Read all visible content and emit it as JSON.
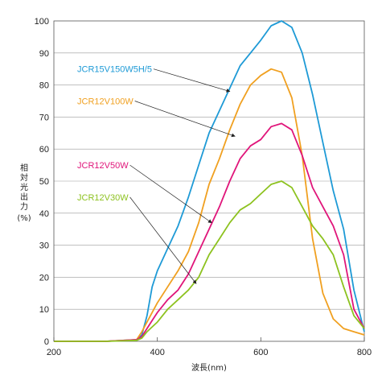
{
  "chart_data": {
    "type": "line",
    "xlabel": "波長(nm)",
    "ylabel_chars": [
      "相",
      "対",
      "光",
      "出",
      "力"
    ],
    "ylabel_unit": "(%)",
    "xlim": [
      200,
      800
    ],
    "ylim": [
      0,
      100
    ],
    "x_ticks": [
      200,
      400,
      600,
      800
    ],
    "y_ticks": [
      0,
      10,
      20,
      30,
      40,
      50,
      60,
      70,
      80,
      90,
      100
    ],
    "grid": "horizontal",
    "series": [
      {
        "name": "JCR15V150W5H/5",
        "color": "#1e9ad6",
        "label_pos": [
          100,
          85
        ],
        "arrow_to": [
          540,
          78
        ],
        "x": [
          200,
          300,
          360,
          370,
          380,
          390,
          400,
          420,
          440,
          460,
          480,
          500,
          520,
          540,
          560,
          580,
          600,
          620,
          640,
          660,
          680,
          700,
          720,
          740,
          760,
          780,
          800
        ],
        "y": [
          0,
          0,
          0.5,
          2,
          8,
          17,
          22,
          29,
          36,
          45,
          55,
          65,
          72,
          79,
          86,
          90,
          94,
          98.5,
          100,
          98,
          90,
          77,
          62,
          47,
          35,
          16,
          3
        ]
      },
      {
        "name": "JCR12V100W",
        "color": "#f0a020",
        "label_pos": [
          100,
          75
        ],
        "arrow_to": [
          550,
          64
        ],
        "x": [
          200,
          300,
          360,
          370,
          380,
          390,
          400,
          420,
          440,
          460,
          480,
          500,
          520,
          540,
          560,
          580,
          600,
          620,
          640,
          660,
          680,
          700,
          720,
          740,
          760,
          780,
          800
        ],
        "y": [
          0,
          0,
          0.5,
          3,
          6,
          9,
          12,
          17,
          22,
          28,
          37,
          49,
          57,
          66,
          74,
          80,
          83,
          85,
          84,
          76,
          58,
          32,
          15,
          7,
          4,
          3,
          2
        ]
      },
      {
        "name": "JCR12V50W",
        "color": "#e0157a",
        "label_pos": [
          100,
          55
        ],
        "arrow_to": [
          505,
          37
        ],
        "x": [
          200,
          300,
          360,
          370,
          380,
          390,
          400,
          420,
          440,
          460,
          480,
          500,
          520,
          540,
          560,
          580,
          600,
          620,
          640,
          660,
          680,
          700,
          720,
          740,
          760,
          780,
          800
        ],
        "y": [
          0,
          0,
          0.5,
          1.5,
          4,
          6.5,
          9,
          13,
          16,
          21,
          28,
          35,
          42,
          50,
          57,
          61,
          63,
          67,
          68,
          66,
          58,
          48,
          42,
          36,
          27,
          10,
          4
        ]
      },
      {
        "name": "JCR12V30W",
        "color": "#8dc21f",
        "label_pos": [
          100,
          45
        ],
        "arrow_to": [
          475,
          18
        ],
        "x": [
          200,
          300,
          360,
          370,
          380,
          390,
          400,
          420,
          440,
          460,
          480,
          500,
          520,
          540,
          560,
          580,
          600,
          620,
          640,
          660,
          680,
          700,
          720,
          740,
          760,
          780,
          800
        ],
        "y": [
          0,
          0,
          0.3,
          1,
          3,
          4.5,
          6,
          10,
          13,
          16,
          20,
          27,
          32,
          37,
          41,
          43,
          46,
          49,
          50,
          48,
          42,
          36,
          32,
          27,
          17,
          8,
          4
        ]
      }
    ]
  }
}
